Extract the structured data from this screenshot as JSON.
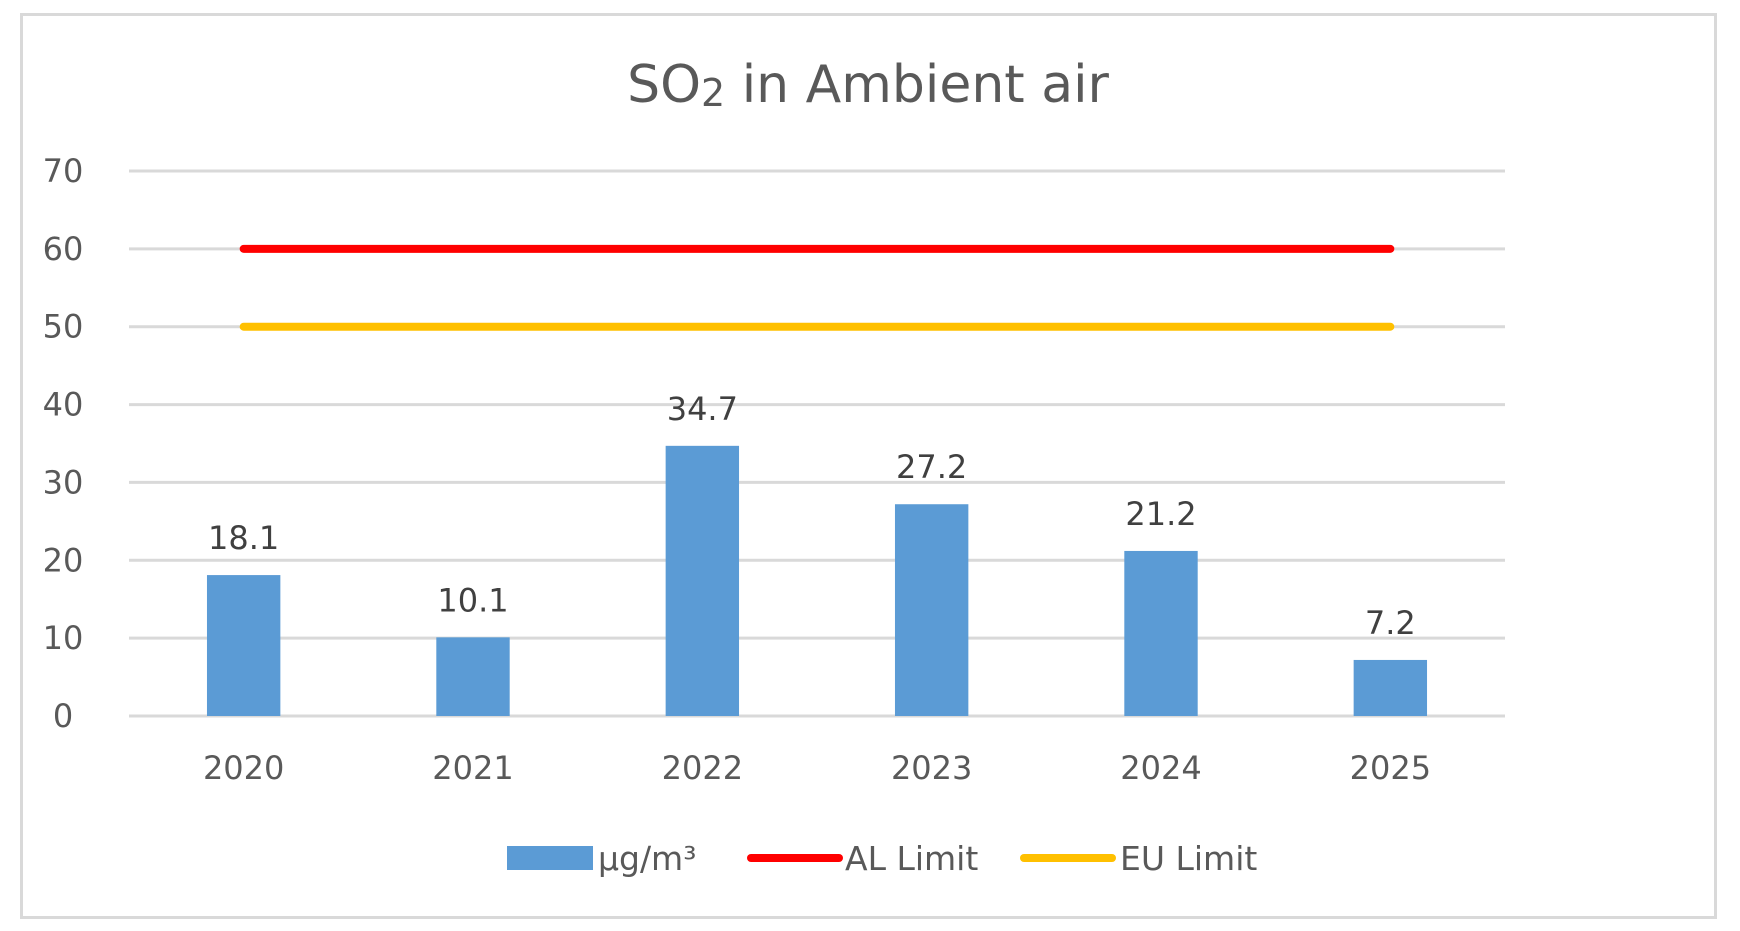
{
  "chart_data": {
    "type": "bar",
    "title": {
      "prefix": "SO",
      "subscript": "2",
      "suffix": " in Ambient air"
    },
    "categories": [
      "2020",
      "2021",
      "2022",
      "2023",
      "2024",
      "2025"
    ],
    "series": [
      {
        "name": "µg/m³",
        "type": "bar",
        "values": [
          18.1,
          10.1,
          34.7,
          27.2,
          21.2,
          7.2
        ],
        "data_labels": [
          "18.1",
          "10.1",
          "34.7",
          "27.2",
          "21.2",
          "7.2"
        ],
        "color": "#5b9bd5"
      },
      {
        "name": "AL Limit",
        "type": "line",
        "values": [
          60,
          60,
          60,
          60,
          60,
          60
        ],
        "color": "#ff0000"
      },
      {
        "name": "EU Limit",
        "type": "line",
        "values": [
          50,
          50,
          50,
          50,
          50,
          50
        ],
        "color": "#ffc000"
      }
    ],
    "yticks": [
      "0",
      "10",
      "20",
      "30",
      "40",
      "50",
      "60",
      "70"
    ],
    "ylim": [
      0,
      70
    ],
    "grid": true,
    "legend_position": "bottom",
    "colors": {
      "grid": "#d9d9d9",
      "text": "#595959",
      "frame": "#d9d9d9"
    }
  }
}
